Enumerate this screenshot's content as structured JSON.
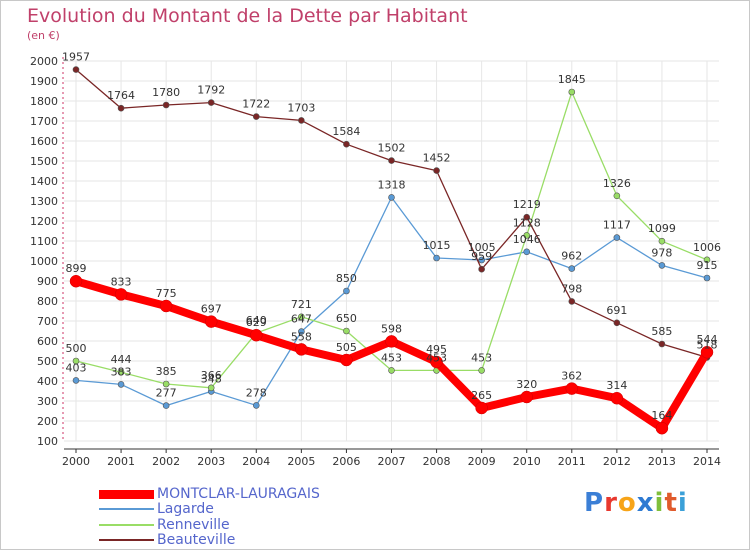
{
  "title": "Evolution du Montant de la Dette par Habitant",
  "subtitle": "(en €)",
  "logo": {
    "text": "Proxiti",
    "letters": [
      "P",
      "r",
      "o",
      "x",
      "i",
      "t",
      "i"
    ],
    "colors": [
      "#3b7fd6",
      "#e8382e",
      "#f7a418",
      "#2e7ad2",
      "#7fbf3b",
      "#e05a2b",
      "#3ba0d8"
    ]
  },
  "chart_data": {
    "type": "line",
    "x": [
      2000,
      2001,
      2002,
      2003,
      2004,
      2005,
      2006,
      2007,
      2008,
      2009,
      2010,
      2011,
      2012,
      2013,
      2014
    ],
    "ylim": [
      100,
      2000
    ],
    "yticks": [
      100,
      200,
      300,
      400,
      500,
      600,
      700,
      800,
      900,
      1000,
      1100,
      1200,
      1300,
      1400,
      1500,
      1600,
      1700,
      1800,
      1900,
      2000
    ],
    "grid": true,
    "legend_position": "bottom-left",
    "series": [
      {
        "name": "MONTCLAR-LAURAGAIS",
        "color": "#ff0000",
        "values": [
          899,
          833,
          775,
          697,
          629,
          558,
          505,
          598,
          495,
          265,
          320,
          362,
          314,
          164,
          544
        ]
      },
      {
        "name": "Lagarde",
        "color": "#5a9ad5",
        "values": [
          403,
          383,
          277,
          348,
          278,
          647,
          850,
          1318,
          1015,
          1005,
          1046,
          962,
          1117,
          978,
          915
        ]
      },
      {
        "name": "Renneville",
        "color": "#99dd66",
        "values": [
          500,
          444,
          385,
          366,
          640,
          721,
          650,
          453,
          453,
          453,
          1128,
          1845,
          1326,
          1099,
          1006
        ]
      },
      {
        "name": "Beauteville",
        "color": "#7a2626",
        "values": [
          1957,
          1764,
          1780,
          1792,
          1722,
          1703,
          1584,
          1502,
          1452,
          959,
          1219,
          798,
          691,
          585,
          518
        ]
      }
    ]
  }
}
